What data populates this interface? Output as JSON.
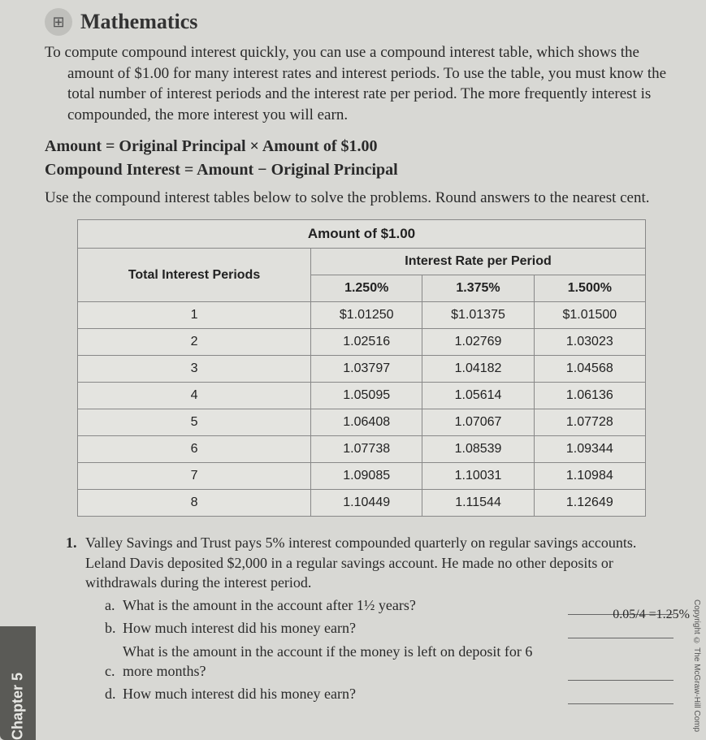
{
  "header": {
    "icon_glyph": "⊞",
    "title": "Mathematics"
  },
  "intro": "To compute compound interest quickly, you can use a compound interest table, which shows the amount of $1.00 for many interest rates and interest periods. To use the table, you must know the total number of interest periods and the interest rate per period. The more frequently interest is compounded, the more interest you will earn.",
  "formula1_left": "Amount",
  "formula1_right": "Original Principal × Amount of $1.00",
  "formula2_left": "Compound Interest",
  "formula2_right": "Amount − Original Principal",
  "instructions": "Use the compound interest tables below to solve the problems. Round answers to the nearest cent.",
  "table": {
    "super_header": "Amount of $1.00",
    "row_header": "Total Interest Periods",
    "sub_header": "Interest Rate per Period",
    "rates": [
      "1.250%",
      "1.375%",
      "1.500%"
    ],
    "periods": [
      "1",
      "2",
      "3",
      "4",
      "5",
      "6",
      "7",
      "8"
    ],
    "values": [
      [
        "$1.01250",
        "$1.01375",
        "$1.01500"
      ],
      [
        "1.02516",
        "1.02769",
        "1.03023"
      ],
      [
        "1.03797",
        "1.04182",
        "1.04568"
      ],
      [
        "1.05095",
        "1.05614",
        "1.06136"
      ],
      [
        "1.06408",
        "1.07067",
        "1.07728"
      ],
      [
        "1.07738",
        "1.08539",
        "1.09344"
      ],
      [
        "1.09085",
        "1.10031",
        "1.10984"
      ],
      [
        "1.10449",
        "1.11544",
        "1.12649"
      ]
    ]
  },
  "problem": {
    "number": "1.",
    "text": "Valley Savings and Trust pays 5% interest compounded quarterly on regular savings accounts. Leland Davis deposited $2,000 in a regular savings account. He made no other deposits or withdrawals during the interest period.",
    "calc_note": "0.05/4 =1.25%",
    "parts": {
      "a": {
        "letter": "a.",
        "text": "What is the amount in the account after 1½ years?",
        "answer": ""
      },
      "b": {
        "letter": "b.",
        "text": "How much interest did his money earn?",
        "answer": ""
      },
      "c": {
        "letter": "c.",
        "text": "What is the amount in the account if the money is left on deposit for 6 more months?",
        "answer": ""
      },
      "d": {
        "letter": "d.",
        "text": "How much interest did his money earn?",
        "answer": ""
      }
    }
  },
  "chapter_tab": "Chapter 5",
  "copyright": "Copyright © The McGraw-Hill Comp"
}
